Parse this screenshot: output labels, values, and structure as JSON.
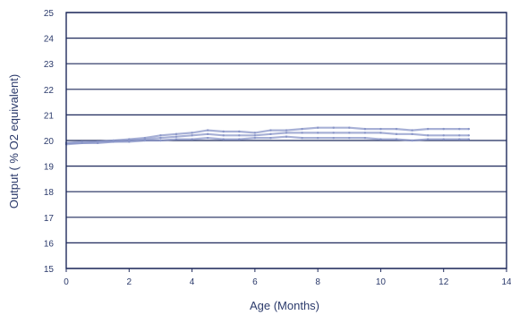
{
  "chart_data": {
    "type": "line",
    "title": "",
    "xlabel": "Age (Months)",
    "ylabel": "Output ( % O2 equivalent)",
    "xlim": [
      0,
      14
    ],
    "ylim": [
      15,
      25
    ],
    "x_ticks": [
      0,
      2,
      4,
      6,
      8,
      10,
      12,
      14
    ],
    "y_ticks": [
      15,
      16,
      17,
      18,
      19,
      20,
      21,
      22,
      23,
      24,
      25
    ],
    "grid": "horizontal",
    "legend": "none",
    "colors": {
      "axis": "#1f2a5c",
      "grid": "#1f2a5c",
      "data": "#8a96c8"
    },
    "series": [
      {
        "x": [
          0,
          0.5,
          1,
          1.5,
          2,
          2.5,
          3,
          3.5,
          4,
          4.5,
          5,
          5.5,
          6,
          6.5,
          7,
          7.5,
          8,
          8.5,
          9,
          9.5,
          10,
          10.5,
          11,
          11.5,
          12,
          12.5,
          12.8
        ],
        "values": [
          19.9,
          19.95,
          19.95,
          20.0,
          20.05,
          20.1,
          20.2,
          20.25,
          20.3,
          20.4,
          20.35,
          20.35,
          20.3,
          20.4,
          20.4,
          20.45,
          20.5,
          20.5,
          20.5,
          20.45,
          20.45,
          20.45,
          20.4,
          20.45,
          20.45,
          20.45,
          20.45
        ]
      },
      {
        "x": [
          0,
          0.5,
          1,
          1.5,
          2,
          2.5,
          3,
          3.5,
          4,
          4.5,
          5,
          5.5,
          6,
          6.5,
          7,
          7.5,
          8,
          8.5,
          9,
          9.5,
          10,
          10.5,
          11,
          11.5,
          12,
          12.5,
          12.8
        ],
        "values": [
          19.9,
          19.9,
          19.95,
          19.95,
          20.0,
          20.05,
          20.1,
          20.15,
          20.2,
          20.25,
          20.2,
          20.2,
          20.2,
          20.25,
          20.3,
          20.3,
          20.3,
          20.3,
          20.3,
          20.3,
          20.3,
          20.25,
          20.25,
          20.2,
          20.2,
          20.2,
          20.2
        ]
      },
      {
        "x": [
          0,
          0.5,
          1,
          1.5,
          2,
          2.5,
          3,
          3.5,
          4,
          4.5,
          5,
          5.5,
          6,
          6.5,
          7,
          7.5,
          8,
          8.5,
          9,
          9.5,
          10,
          10.5,
          11,
          11.5,
          12,
          12.5,
          12.8
        ],
        "values": [
          19.85,
          19.9,
          19.9,
          19.95,
          19.95,
          20.0,
          20.0,
          20.05,
          20.05,
          20.1,
          20.05,
          20.05,
          20.1,
          20.1,
          20.15,
          20.1,
          20.1,
          20.1,
          20.1,
          20.1,
          20.05,
          20.05,
          20.0,
          20.05,
          20.05,
          20.05,
          20.05
        ]
      }
    ]
  }
}
